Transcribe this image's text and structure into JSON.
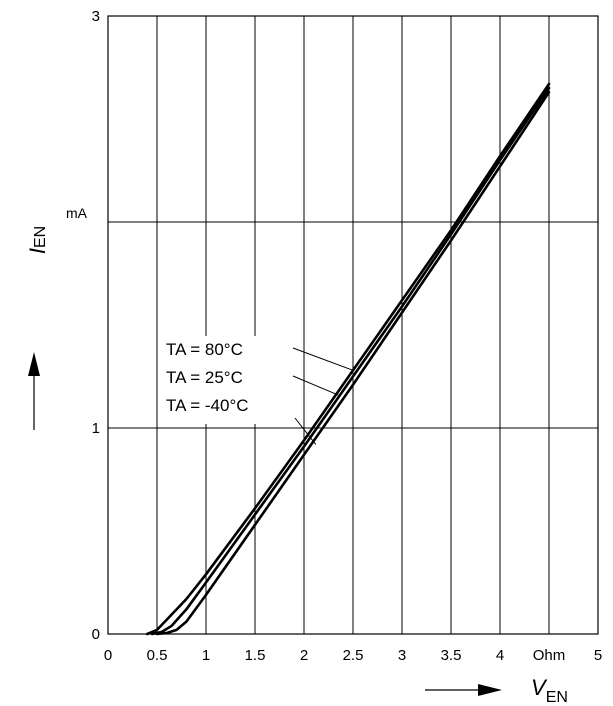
{
  "chart_data": {
    "type": "line",
    "xlabel": {
      "symbol": "V",
      "subscript": "EN"
    },
    "ylabel": {
      "symbol": "I",
      "subscript": "EN"
    },
    "xunit": "Ohm",
    "yunit": "mA",
    "xlim": [
      0,
      5
    ],
    "ylim": [
      0,
      3
    ],
    "x_ticks": [
      "0",
      "0.5",
      "1",
      "1.5",
      "2",
      "2.5",
      "3",
      "3.5",
      "4",
      "Ohm",
      "5"
    ],
    "x_tick_values": [
      0,
      0.5,
      1,
      1.5,
      2,
      2.5,
      3,
      3.5,
      4,
      4.5,
      5
    ],
    "y_ticks": [
      "0",
      "1",
      "3"
    ],
    "y_tick_values": [
      0,
      1,
      3
    ],
    "grid": {
      "vertical_every": 0.5,
      "horizontal_at": [
        1,
        2
      ]
    },
    "series": [
      {
        "name": "TA = 80°C",
        "points": [
          [
            0.4,
            0
          ],
          [
            0.5,
            0.02
          ],
          [
            0.6,
            0.07
          ],
          [
            0.8,
            0.17
          ],
          [
            1.0,
            0.29
          ],
          [
            1.5,
            0.61
          ],
          [
            2.0,
            0.94
          ],
          [
            2.5,
            1.28
          ],
          [
            3.0,
            1.62
          ],
          [
            3.5,
            1.96
          ],
          [
            4.0,
            2.32
          ],
          [
            4.5,
            2.67
          ]
        ]
      },
      {
        "name": "TA = 25°C",
        "points": [
          [
            0.45,
            0
          ],
          [
            0.55,
            0.01
          ],
          [
            0.65,
            0.04
          ],
          [
            0.8,
            0.12
          ],
          [
            1.0,
            0.25
          ],
          [
            1.5,
            0.58
          ],
          [
            2.0,
            0.91
          ],
          [
            2.5,
            1.25
          ],
          [
            3.0,
            1.59
          ],
          [
            3.5,
            1.94
          ],
          [
            4.0,
            2.3
          ],
          [
            4.5,
            2.65
          ]
        ]
      },
      {
        "name": "TA = -40°C",
        "points": [
          [
            0.5,
            0
          ],
          [
            0.6,
            0.005
          ],
          [
            0.7,
            0.02
          ],
          [
            0.8,
            0.06
          ],
          [
            1.0,
            0.19
          ],
          [
            1.5,
            0.53
          ],
          [
            2.0,
            0.87
          ],
          [
            2.5,
            1.21
          ],
          [
            3.0,
            1.56
          ],
          [
            3.5,
            1.91
          ],
          [
            4.0,
            2.27
          ],
          [
            4.5,
            2.63
          ]
        ]
      }
    ],
    "annotations": [
      {
        "text": "TA = 80°C",
        "points_to": [
          2.5,
          1.28
        ]
      },
      {
        "text": "TA = 25°C",
        "points_to": [
          2.35,
          1.16
        ]
      },
      {
        "text": "TA = -40°C",
        "points_to": [
          2.12,
          0.92
        ]
      }
    ]
  }
}
